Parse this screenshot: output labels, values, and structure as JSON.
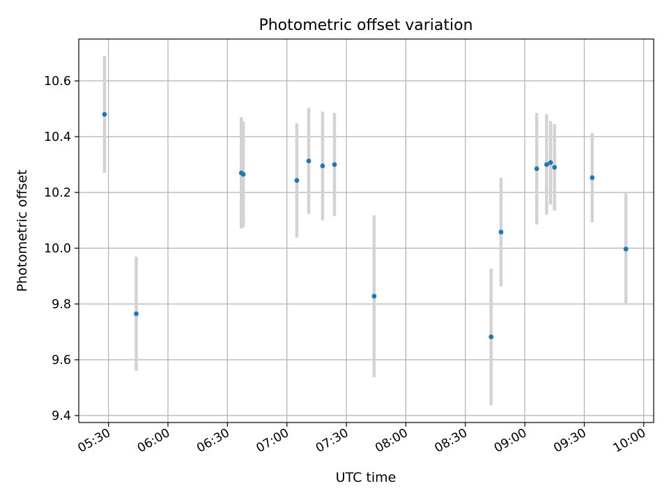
{
  "chart_data": {
    "type": "scatter",
    "title": "Photometric offset variation",
    "xlabel": "UTC time",
    "ylabel": "Photometric offset",
    "xlim": [
      "05:15",
      "10:05"
    ],
    "ylim": [
      9.375,
      10.75
    ],
    "x_ticks": [
      "05:30",
      "06:00",
      "06:30",
      "07:00",
      "07:30",
      "08:00",
      "08:30",
      "09:00",
      "09:30",
      "10:00"
    ],
    "y_ticks": [
      "9.4",
      "9.6",
      "9.8",
      "10.0",
      "10.2",
      "10.4",
      "10.6"
    ],
    "grid": true,
    "error_bar_color": "#d3d3d3",
    "point_color": "#1f77b4",
    "points": [
      {
        "t": "05:28",
        "y": 10.48,
        "yerr": 0.21
      },
      {
        "t": "05:44",
        "y": 9.765,
        "yerr": 0.205
      },
      {
        "t": "06:37",
        "y": 10.27,
        "yerr": 0.2
      },
      {
        "t": "06:38",
        "y": 10.265,
        "yerr": 0.19
      },
      {
        "t": "07:05",
        "y": 10.243,
        "yerr": 0.205
      },
      {
        "t": "07:11",
        "y": 10.313,
        "yerr": 0.19
      },
      {
        "t": "07:18",
        "y": 10.295,
        "yerr": 0.195
      },
      {
        "t": "07:24",
        "y": 10.3,
        "yerr": 0.185
      },
      {
        "t": "07:44",
        "y": 9.828,
        "yerr": 0.29
      },
      {
        "t": "08:43",
        "y": 9.682,
        "yerr": 0.245
      },
      {
        "t": "08:48",
        "y": 10.058,
        "yerr": 0.195
      },
      {
        "t": "09:06",
        "y": 10.285,
        "yerr": 0.2
      },
      {
        "t": "09:11",
        "y": 10.3,
        "yerr": 0.18
      },
      {
        "t": "09:13",
        "y": 10.307,
        "yerr": 0.15
      },
      {
        "t": "09:15",
        "y": 10.29,
        "yerr": 0.155
      },
      {
        "t": "09:34",
        "y": 10.253,
        "yerr": 0.16
      },
      {
        "t": "09:51",
        "y": 9.997,
        "yerr": 0.2
      }
    ]
  }
}
